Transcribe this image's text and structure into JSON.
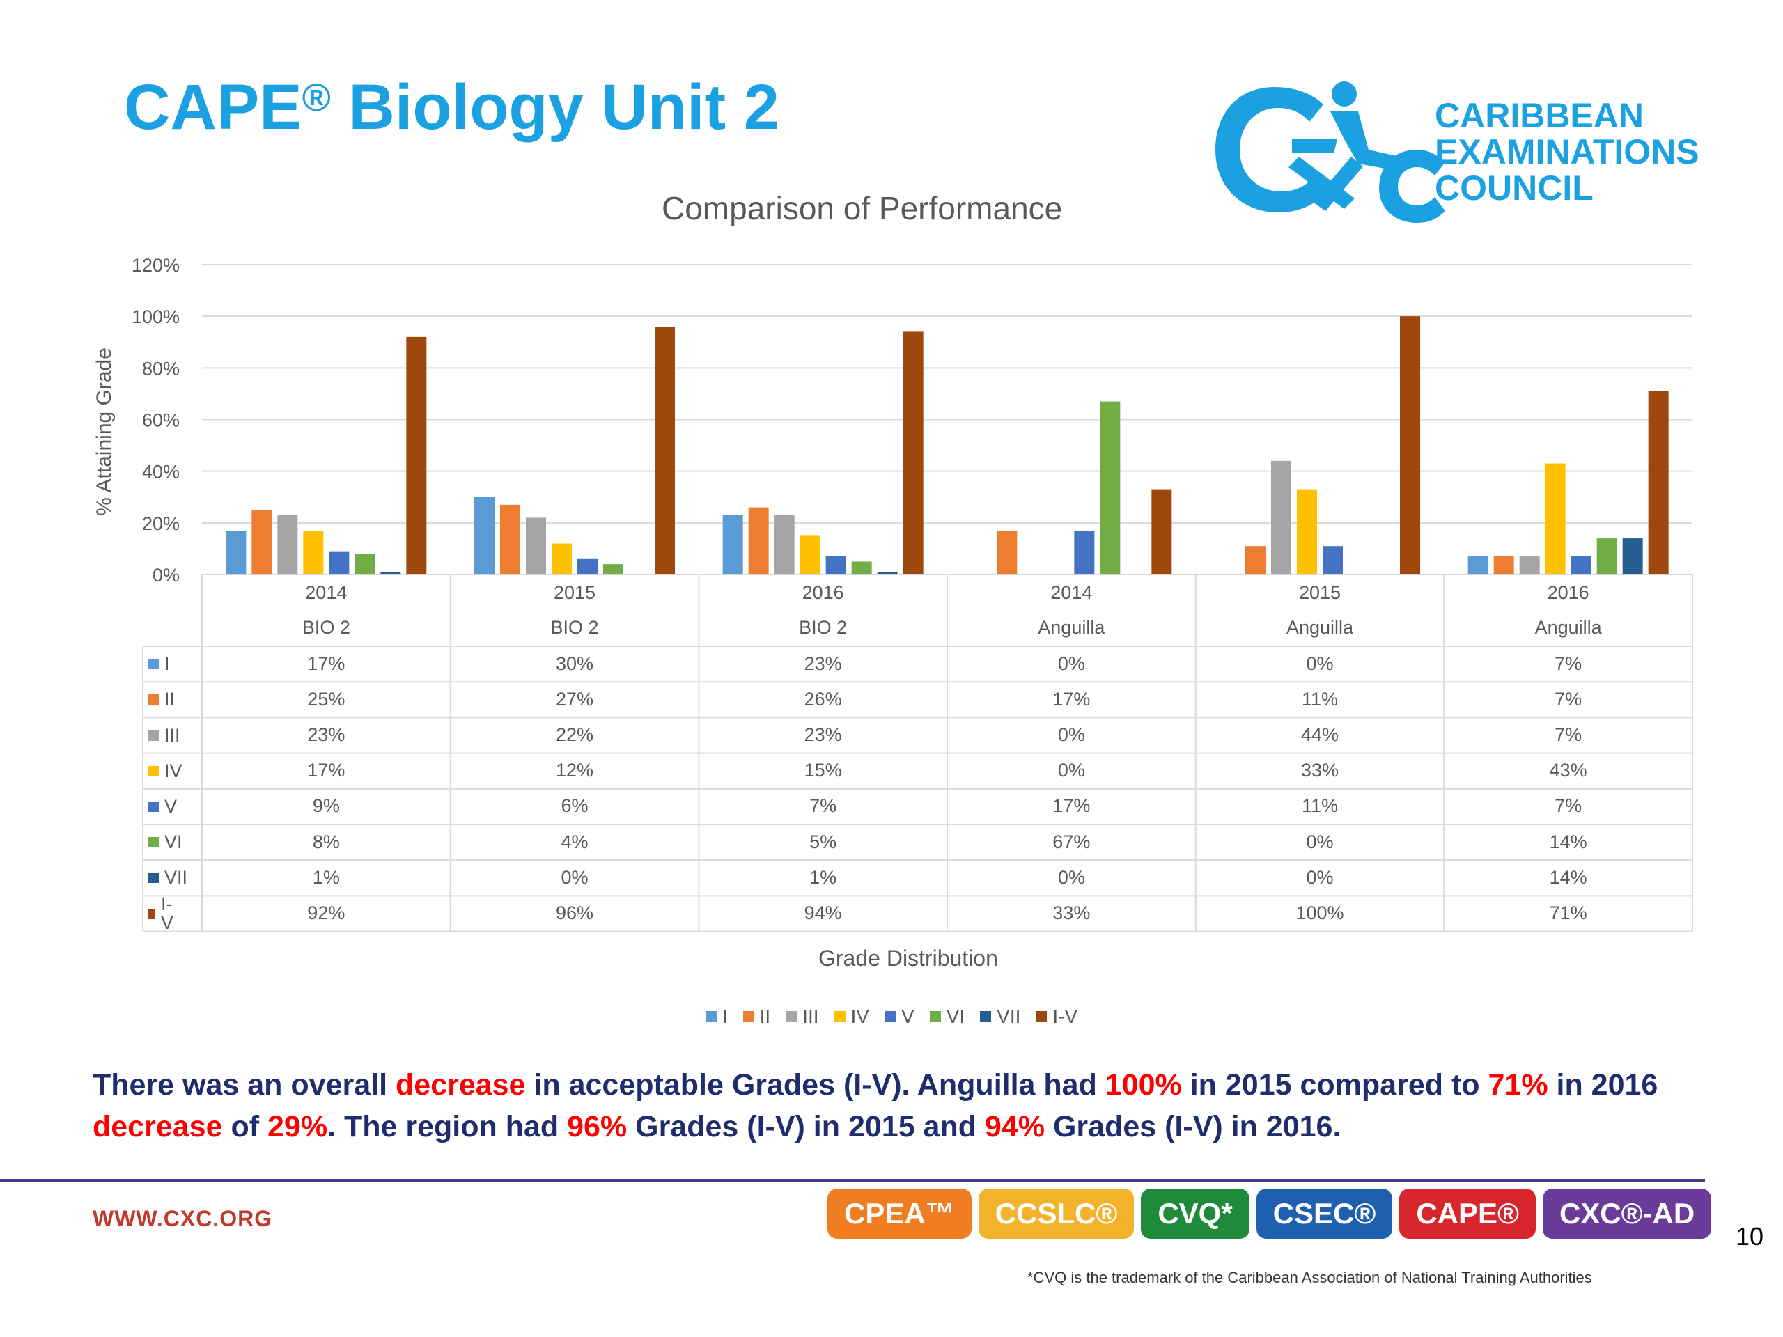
{
  "slide": {
    "title": "CAPE",
    "title_mark": "®",
    "title_rest": " Biology Unit 2",
    "logo": {
      "line1": "CARIBBEAN",
      "line2": "EXAMINATIONS",
      "line3": "COUNCIL",
      "color": "#1ba1e2"
    },
    "summary": [
      {
        "t": "There was an overall ",
        "hl": false
      },
      {
        "t": "decrease",
        "hl": true
      },
      {
        "t": " in acceptable Grades (I-V). Anguilla had ",
        "hl": false
      },
      {
        "t": "100%",
        "hl": true
      },
      {
        "t": " in 2015 compared to ",
        "hl": false
      },
      {
        "t": "71%",
        "hl": true
      },
      {
        "t": " in 2016 ",
        "hl": false
      },
      {
        "t": "decrease",
        "hl": true
      },
      {
        "t": " of ",
        "hl": false
      },
      {
        "t": "29%",
        "hl": true
      },
      {
        "t": ". The region had ",
        "hl": false
      },
      {
        "t": "96%",
        "hl": true
      },
      {
        "t": " Grades (I-V) in 2015 and ",
        "hl": false
      },
      {
        "t": "94%",
        "hl": true
      },
      {
        "t": " Grades (I-V) in 2016.",
        "hl": false
      }
    ],
    "website": "WWW.CXC.ORG",
    "badges": [
      {
        "label": "CPEA™",
        "color": "#f07d22"
      },
      {
        "label": "CCSLC®",
        "color": "#f2b22c"
      },
      {
        "label": "CVQ*",
        "color": "#1e8a3a"
      },
      {
        "label": "CSEC®",
        "color": "#1f5fb0"
      },
      {
        "label": "CAPE®",
        "color": "#d7272d"
      },
      {
        "label": "CXC®-AD",
        "color": "#6a3b98"
      }
    ],
    "page_number": "10",
    "footnote": "*CVQ is the trademark of the Caribbean Association of National Training Authorities"
  },
  "chart_data": {
    "type": "bar",
    "title": "Comparison of Performance",
    "xlabel": "Grade Distribution",
    "ylabel": "% Attaining Grade",
    "ylim": [
      0,
      120
    ],
    "yticks": [
      "0%",
      "20%",
      "40%",
      "60%",
      "80%",
      "100%",
      "120%"
    ],
    "grid": true,
    "legend": "bottom",
    "categories": [
      {
        "year": "2014",
        "group": "BIO 2"
      },
      {
        "year": "2015",
        "group": "BIO 2"
      },
      {
        "year": "2016",
        "group": "BIO 2"
      },
      {
        "year": "2014",
        "group": "Anguilla"
      },
      {
        "year": "2015",
        "group": "Anguilla"
      },
      {
        "year": "2016",
        "group": "Anguilla"
      }
    ],
    "series": [
      {
        "name": "I",
        "color": "#5b9bd5",
        "values": [
          17,
          30,
          23,
          0,
          0,
          7
        ],
        "labels": [
          "17%",
          "30%",
          "23%",
          "0%",
          "0%",
          "7%"
        ]
      },
      {
        "name": "II",
        "color": "#ed7d31",
        "values": [
          25,
          27,
          26,
          17,
          11,
          7
        ],
        "labels": [
          "25%",
          "27%",
          "26%",
          "17%",
          "11%",
          "7%"
        ]
      },
      {
        "name": "III",
        "color": "#a5a5a5",
        "values": [
          23,
          22,
          23,
          0,
          44,
          7
        ],
        "labels": [
          "23%",
          "22%",
          "23%",
          "0%",
          "44%",
          "7%"
        ]
      },
      {
        "name": "IV",
        "color": "#ffc000",
        "values": [
          17,
          12,
          15,
          0,
          33,
          43
        ],
        "labels": [
          "17%",
          "12%",
          "15%",
          "0%",
          "33%",
          "43%"
        ]
      },
      {
        "name": "V",
        "color": "#4472c4",
        "values": [
          9,
          6,
          7,
          17,
          11,
          7
        ],
        "labels": [
          "9%",
          "6%",
          "7%",
          "17%",
          "11%",
          "7%"
        ]
      },
      {
        "name": "VI",
        "color": "#70ad47",
        "values": [
          8,
          4,
          5,
          67,
          0,
          14
        ],
        "labels": [
          "8%",
          "4%",
          "5%",
          "67%",
          "0%",
          "14%"
        ]
      },
      {
        "name": "VII",
        "color": "#255e91",
        "values": [
          1,
          0,
          1,
          0,
          0,
          14
        ],
        "labels": [
          "1%",
          "0%",
          "1%",
          "0%",
          "0%",
          "14%"
        ]
      },
      {
        "name": "I-V",
        "color": "#9e480e",
        "values": [
          92,
          96,
          94,
          33,
          100,
          71
        ],
        "labels": [
          "92%",
          "96%",
          "94%",
          "33%",
          "100%",
          "71%"
        ]
      }
    ]
  }
}
